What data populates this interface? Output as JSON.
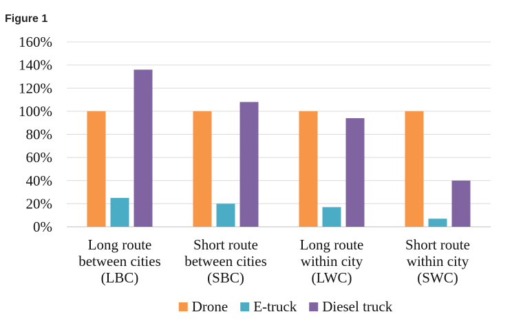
{
  "figure_label": "Figure 1",
  "chart_data": {
    "type": "bar",
    "title": "",
    "xlabel": "",
    "ylabel": "",
    "ylim": [
      0,
      160
    ],
    "yticks": [
      0,
      20,
      40,
      60,
      80,
      100,
      120,
      140,
      160
    ],
    "ytick_labels": [
      "0%",
      "20%",
      "40%",
      "60%",
      "80%",
      "100%",
      "120%",
      "140%",
      "160%"
    ],
    "grid": true,
    "legend_position": "bottom",
    "categories": [
      [
        "Long route",
        "between cities",
        "(LBC)"
      ],
      [
        "Short route",
        "between cities",
        "(SBC)"
      ],
      [
        "Long route",
        "within city",
        "(LWC)"
      ],
      [
        "Short route",
        "within city",
        "(SWC)"
      ]
    ],
    "series": [
      {
        "name": "Drone",
        "color": "#F79646",
        "values": [
          100,
          100,
          100,
          100
        ]
      },
      {
        "name": "E-truck",
        "color": "#4BACC6",
        "values": [
          25,
          20,
          17,
          7
        ]
      },
      {
        "name": "Diesel truck",
        "color": "#8064A2",
        "values": [
          136,
          108,
          94,
          40
        ]
      }
    ]
  }
}
